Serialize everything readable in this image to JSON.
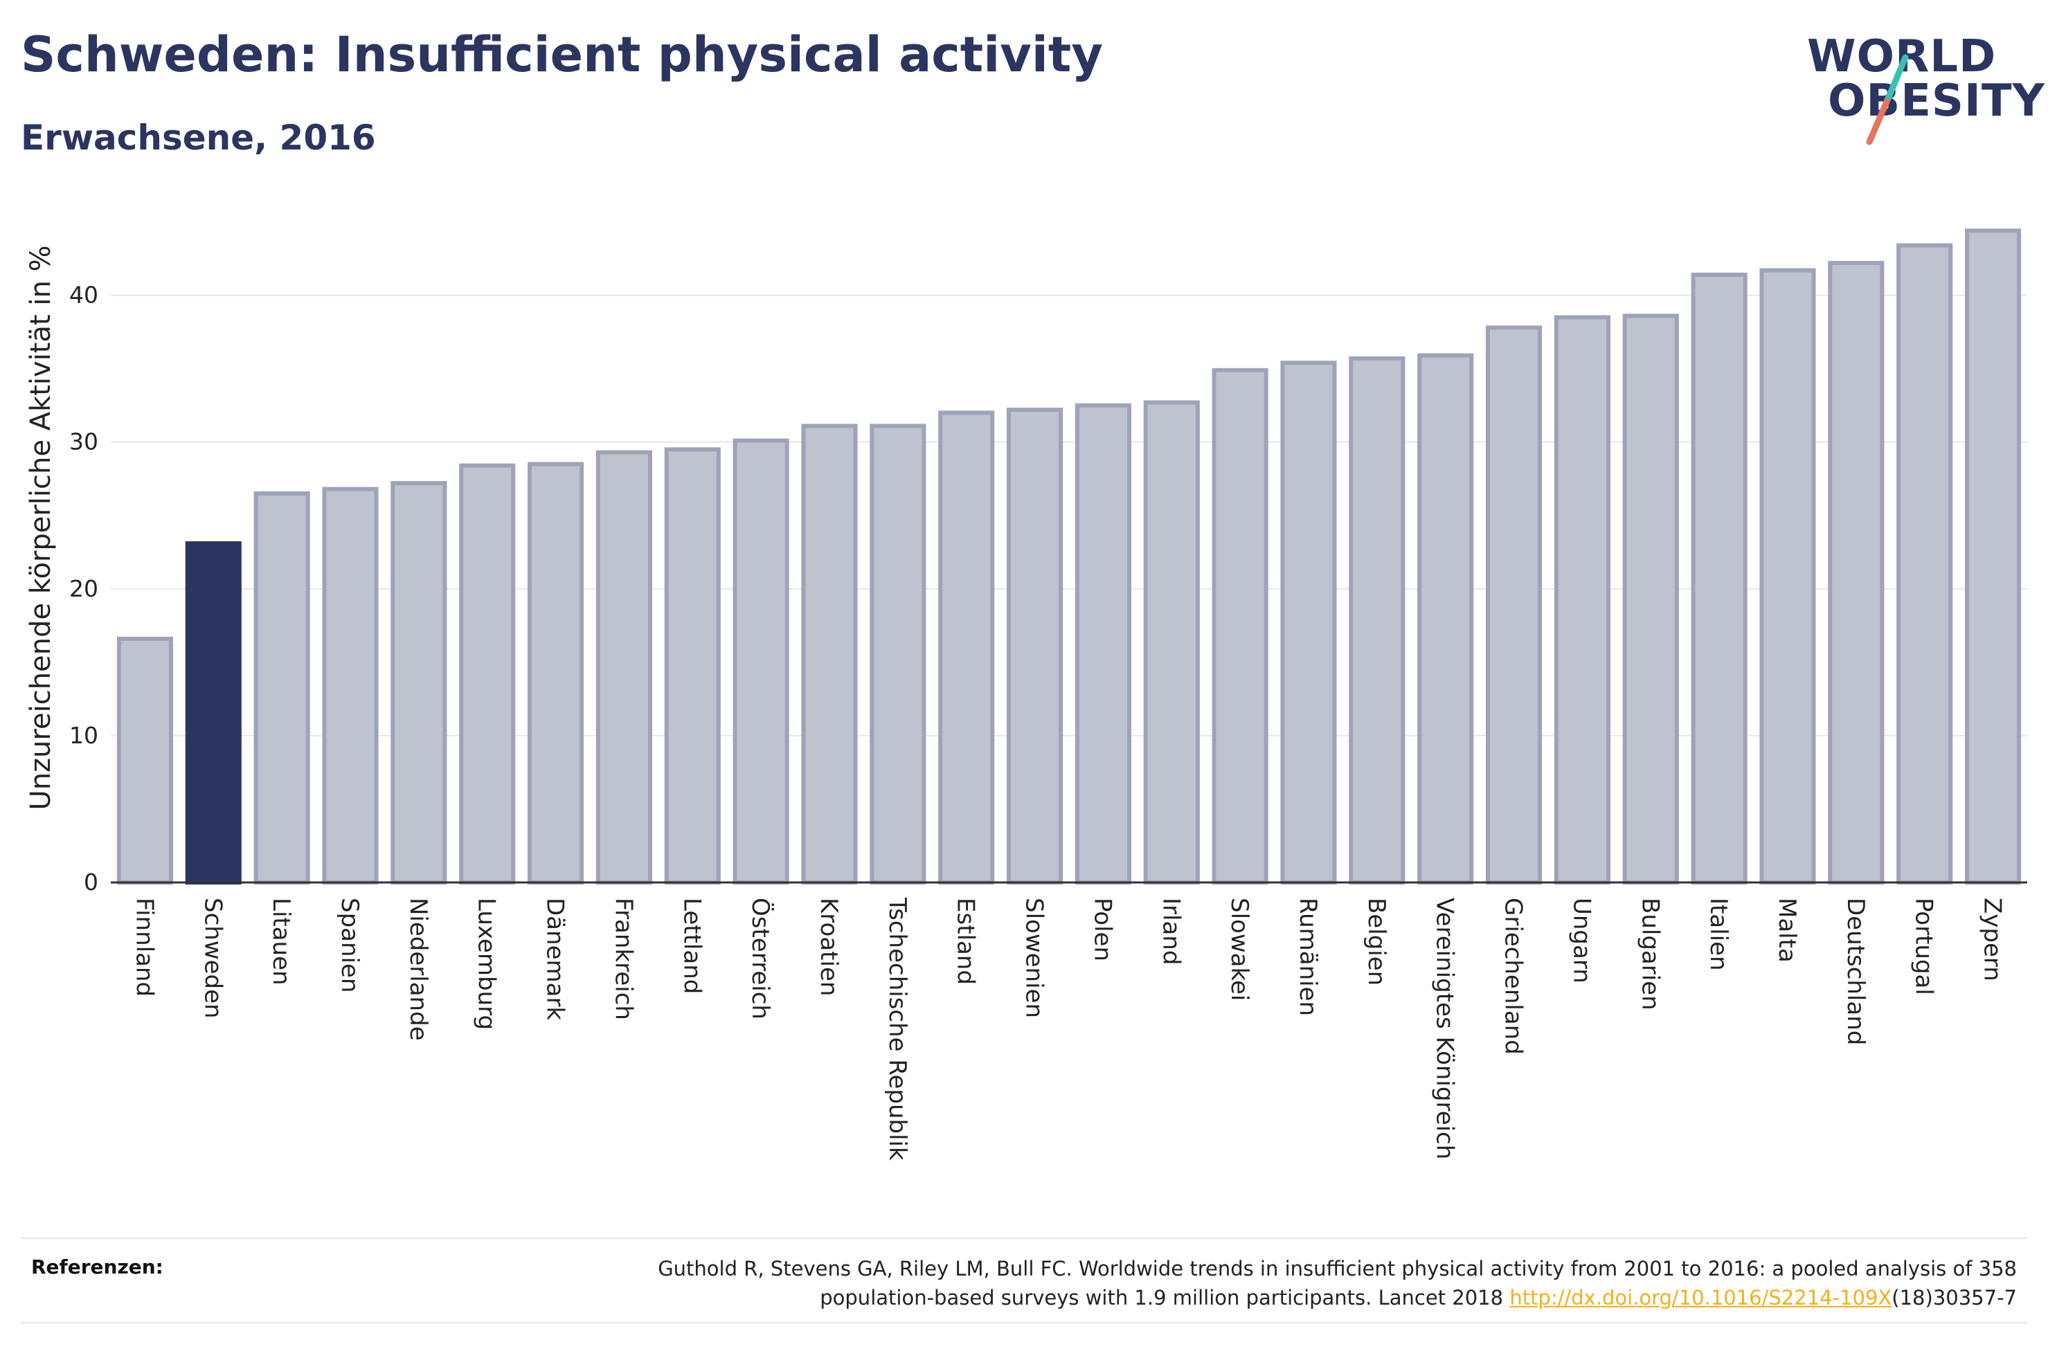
{
  "header": {
    "title": "Schweden: Insufficient physical activity",
    "subtitle": "Erwachsene, 2016"
  },
  "logo": {
    "line1": "WORLD",
    "line2": "OBESITY"
  },
  "chart_data": {
    "type": "bar",
    "ylabel": "Unzureichende körperliche Aktivität in %",
    "ylim": [
      0,
      45.5
    ],
    "yticks": [
      0,
      10,
      20,
      30,
      40
    ],
    "grid": true,
    "highlight": "Schweden",
    "colors": {
      "bar": "#bfc2cf",
      "bar_stroke": "#9ea3b8",
      "highlight": "#2b3560",
      "grid": "#e6e6ec",
      "axis": "#333333"
    },
    "categories": [
      "Finnland",
      "Schweden",
      "Litauen",
      "Spanien",
      "Niederlande",
      "Luxemburg",
      "Dänemark",
      "Frankreich",
      "Lettland",
      "Österreich",
      "Kroatien",
      "Tschechische Republik",
      "Estland",
      "Slowenien",
      "Polen",
      "Irland",
      "Slowakei",
      "Rumänien",
      "Belgien",
      "Vereinigtes Königreich",
      "Griechenland",
      "Ungarn",
      "Bulgarien",
      "Italien",
      "Malta",
      "Deutschland",
      "Portugal",
      "Zypern"
    ],
    "values": [
      16.6,
      23.1,
      26.5,
      26.8,
      27.2,
      28.4,
      28.5,
      29.3,
      29.5,
      30.1,
      31.1,
      31.1,
      32.0,
      32.2,
      32.5,
      32.7,
      34.9,
      35.4,
      35.7,
      35.9,
      37.8,
      38.5,
      38.6,
      41.4,
      41.7,
      42.2,
      43.4,
      44.4
    ]
  },
  "references": {
    "label": "Referenzen:",
    "text_line1": "Guthold R, Stevens GA, Riley LM, Bull FC. Worldwide trends in insufficient physical activity from 2001 to 2016: a pooled analysis of 358",
    "text_line2_prefix": "population-based surveys with 1.9 million participants. Lancet 2018 ",
    "link": "http://dx.doi.org/10.1016/S2214-109X",
    "text_line2_suffix": "(18)30357-7"
  }
}
